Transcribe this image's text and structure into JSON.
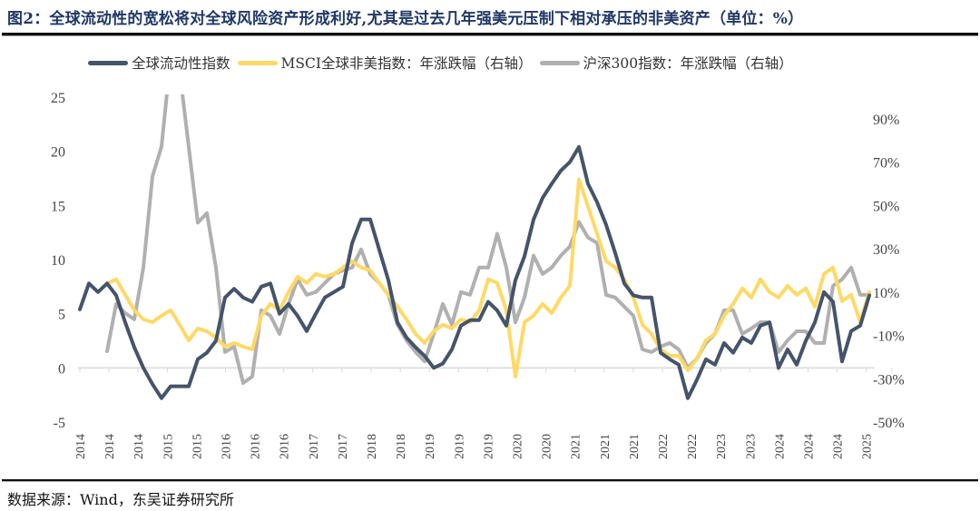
{
  "title": "图2：全球流动性的宽松将对全球风险资产形成利好,尤其是过去几年强美元压制下相对承压的非美资产（单位：%）",
  "source": "数据来源：Wind，东吴证券研究所",
  "chart_data": {
    "type": "line",
    "title": "",
    "legend_position": "top",
    "grid": false,
    "x_tick_labels": [
      "2014",
      "2014",
      "2014",
      "2015",
      "2015",
      "2016",
      "2016",
      "2016",
      "2017",
      "2017",
      "2018",
      "2018",
      "2019",
      "2019",
      "2019",
      "2020",
      "2020",
      "2021",
      "2021",
      "2021",
      "2022",
      "2022",
      "2023",
      "2023",
      "2024",
      "2024",
      "2024",
      "2025"
    ],
    "left_axis": {
      "ylim": [
        -5,
        25
      ],
      "ticks": [
        "-5",
        "0",
        "5",
        "10",
        "15",
        "20",
        "25"
      ],
      "tick_values": [
        -5,
        0,
        5,
        10,
        15,
        20,
        25
      ]
    },
    "right_axis": {
      "ylim": [
        -50,
        100
      ],
      "ticks": [
        "-50%",
        "-30%",
        "-10%",
        "10%",
        "30%",
        "50%",
        "70%",
        "90%"
      ],
      "tick_values": [
        -50,
        -30,
        -10,
        10,
        30,
        50,
        70,
        90
      ]
    },
    "series": [
      {
        "name": "全球流动性指数",
        "axis": "left",
        "color": "#44546a",
        "values": [
          5.4,
          7.8,
          7.0,
          7.8,
          6.7,
          4.2,
          1.9,
          0,
          -1.5,
          -2.8,
          -1.7,
          -1.7,
          -1.7,
          0.8,
          1.4,
          2.5,
          6.5,
          7.3,
          6.5,
          6.1,
          7.5,
          7.8,
          5.0,
          5.9,
          4.8,
          3.4,
          5.0,
          6.5,
          7.0,
          7.5,
          11.5,
          13.7,
          13.7,
          10.9,
          8.1,
          4.2,
          2.8,
          1.9,
          1.1,
          0,
          0.4,
          1.7,
          3.9,
          4.4,
          4.4,
          6.1,
          5.3,
          3.9,
          8.1,
          10.3,
          13.7,
          15.7,
          17.0,
          18.2,
          19.0,
          20.4,
          17.0,
          15.3,
          13.2,
          10.6,
          7.8,
          6.7,
          6.5,
          6.5,
          1.4,
          0.8,
          0.3,
          -2.8,
          -1.1,
          0.8,
          0.3,
          2.3,
          1.4,
          2.8,
          2.3,
          3.9,
          4.2,
          0,
          1.7,
          0.3,
          2.5,
          4.2,
          7.0,
          6.1,
          0.6,
          3.4,
          3.9,
          6.7
        ]
      },
      {
        "name": "MSCI全球非美指数：年涨跌幅（右轴）",
        "axis": "right",
        "color": "#ffd966",
        "values": [
          null,
          null,
          null,
          14,
          15.9,
          8.7,
          1.6,
          -2.6,
          -3.9,
          -0.9,
          1.6,
          -5.1,
          -12.3,
          -6.8,
          -8.1,
          -11,
          -15.2,
          -13.5,
          -15.2,
          -16.5,
          -0.9,
          4.5,
          1.6,
          10,
          17.1,
          14.2,
          18.4,
          17.1,
          18.4,
          21.3,
          24.3,
          21.3,
          20,
          14.2,
          8.7,
          3.3,
          -2.6,
          -9.3,
          -13.5,
          -8.1,
          -5.1,
          -6.8,
          -2.6,
          -3.9,
          1.6,
          15.9,
          14.2,
          1.6,
          -29,
          -3.9,
          -0.9,
          4.5,
          0.3,
          7.5,
          12.9,
          62,
          49.5,
          36.9,
          24.3,
          21.3,
          15.9,
          7.5,
          -5.1,
          -9.3,
          -16.5,
          -19.4,
          -19.4,
          -26.1,
          -20.7,
          -12.3,
          -9.3,
          -0.9,
          4.5,
          11.7,
          7.5,
          15.9,
          10,
          7.5,
          12.9,
          8.7,
          11.7,
          3.3,
          18.4,
          21.3,
          5.8,
          8.7,
          -3.9,
          10
        ]
      },
      {
        "name": "沪深300指数：年涨跌幅（右轴）",
        "axis": "right",
        "color": "#b0b0b0",
        "values": [
          null,
          null,
          null,
          -17.3,
          4.5,
          0.3,
          -2.6,
          21.3,
          63.4,
          77.2,
          118,
          112,
          77,
          42,
          46.5,
          21.3,
          -17.7,
          -15.2,
          -32,
          -29,
          1.6,
          -0.9,
          -9.3,
          4.5,
          15.9,
          8.7,
          10,
          14.2,
          18.4,
          20,
          21.3,
          29.7,
          18.4,
          14.2,
          8.7,
          -5.1,
          -12.3,
          -17.7,
          -22,
          -9.3,
          4.5,
          -5.1,
          10,
          8.7,
          21.3,
          21.3,
          36.9,
          21.3,
          -3.9,
          7.5,
          26.8,
          18.4,
          21.3,
          26.8,
          31,
          42.4,
          35.2,
          32.7,
          8.7,
          7.5,
          3.3,
          -0.9,
          -16.5,
          -17.7,
          -15.2,
          -13.5,
          -16.5,
          -24.9,
          -20.7,
          -13.5,
          -9.3,
          1.6,
          1.6,
          -9.3,
          -6.8,
          -3.9,
          -3.9,
          -17.7,
          -12.3,
          -8.1,
          -8.1,
          -13.5,
          -13.5,
          12.9,
          15.9,
          21.3,
          8.7,
          8.7
        ]
      }
    ]
  }
}
